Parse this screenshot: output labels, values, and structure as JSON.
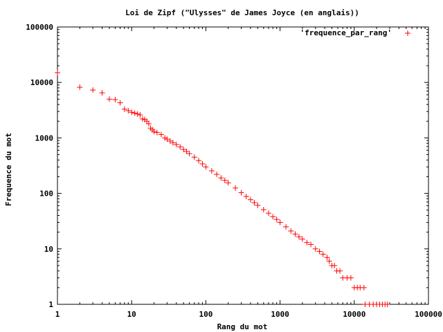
{
  "chart_data": {
    "type": "scatter",
    "title": "Loi de Zipf (\"Ulysses\" de James Joyce (en anglais))",
    "xlabel": "Rang du mot",
    "ylabel": "Frequence du mot",
    "xscale": "log",
    "yscale": "log",
    "xlim": [
      1,
      100000
    ],
    "ylim": [
      1,
      100000
    ],
    "xticks": [
      "1",
      "10",
      "100",
      "1000",
      "10000",
      "100000"
    ],
    "yticks": [
      "1",
      "10",
      "100",
      "1000",
      "10000",
      "100000"
    ],
    "grid": false,
    "legend_position": "top-right",
    "series": [
      {
        "name": "'frequence_par_rang'",
        "color": "#ff0000",
        "marker": "plus",
        "points": [
          [
            1,
            15000
          ],
          [
            2,
            8200
          ],
          [
            3,
            7300
          ],
          [
            4,
            6500
          ],
          [
            5,
            5000
          ],
          [
            6,
            4900
          ],
          [
            7,
            4300
          ],
          [
            8,
            3300
          ],
          [
            9,
            3100
          ],
          [
            10,
            2900
          ],
          [
            11,
            2800
          ],
          [
            12,
            2700
          ],
          [
            13,
            2600
          ],
          [
            14,
            2200
          ],
          [
            15,
            2150
          ],
          [
            16,
            2000
          ],
          [
            17,
            1800
          ],
          [
            18,
            1500
          ],
          [
            19,
            1400
          ],
          [
            20,
            1300
          ],
          [
            22,
            1250
          ],
          [
            25,
            1150
          ],
          [
            28,
            1000
          ],
          [
            30,
            950
          ],
          [
            33,
            880
          ],
          [
            36,
            820
          ],
          [
            40,
            760
          ],
          [
            45,
            690
          ],
          [
            50,
            620
          ],
          [
            55,
            570
          ],
          [
            60,
            520
          ],
          [
            70,
            450
          ],
          [
            80,
            390
          ],
          [
            90,
            340
          ],
          [
            100,
            300
          ],
          [
            120,
            255
          ],
          [
            140,
            220
          ],
          [
            160,
            190
          ],
          [
            180,
            172
          ],
          [
            200,
            155
          ],
          [
            250,
            125
          ],
          [
            300,
            103
          ],
          [
            350,
            88
          ],
          [
            400,
            77
          ],
          [
            450,
            68
          ],
          [
            500,
            61
          ],
          [
            600,
            51
          ],
          [
            700,
            44
          ],
          [
            800,
            38
          ],
          [
            900,
            34
          ],
          [
            1000,
            30
          ],
          [
            1200,
            25
          ],
          [
            1400,
            21
          ],
          [
            1600,
            18.5
          ],
          [
            1800,
            16.5
          ],
          [
            2000,
            15
          ],
          [
            2300,
            13
          ],
          [
            2600,
            12
          ],
          [
            3000,
            10
          ],
          [
            3400,
            9
          ],
          [
            3800,
            8
          ],
          [
            4300,
            7
          ],
          [
            4600,
            6
          ],
          [
            5000,
            5
          ],
          [
            5400,
            5
          ],
          [
            5800,
            4
          ],
          [
            6400,
            4
          ],
          [
            7000,
            3
          ],
          [
            8000,
            3
          ],
          [
            9000,
            3
          ],
          [
            10000,
            2
          ],
          [
            11000,
            2
          ],
          [
            12000,
            2
          ],
          [
            13500,
            2
          ],
          [
            14000,
            1
          ],
          [
            16000,
            1
          ],
          [
            18000,
            1
          ],
          [
            20000,
            1
          ],
          [
            22000,
            1
          ],
          [
            24000,
            1
          ],
          [
            26000,
            1
          ],
          [
            28000,
            1
          ]
        ]
      }
    ]
  }
}
